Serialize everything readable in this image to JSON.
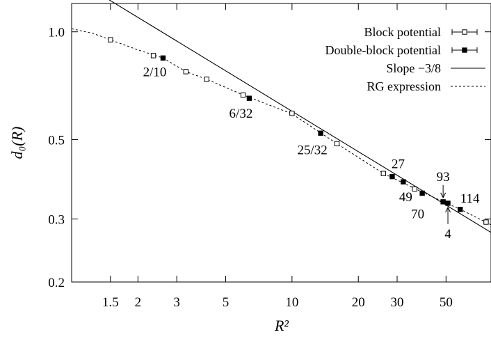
{
  "chart_data": {
    "type": "scatter",
    "xscale": "log",
    "yscale": "log",
    "xlim": [
      1.0,
      80
    ],
    "ylim": [
      0.2,
      1.2
    ],
    "xlabel": "R²",
    "ylabel": "d₀(R)",
    "xticks": [
      {
        "value": 1.5,
        "label": "1.5"
      },
      {
        "value": 2,
        "label": "2"
      },
      {
        "value": 3,
        "label": "3"
      },
      {
        "value": 5,
        "label": "5"
      },
      {
        "value": 10,
        "label": "10"
      },
      {
        "value": 20,
        "label": "20"
      },
      {
        "value": 30,
        "label": "30"
      },
      {
        "value": 50,
        "label": "50"
      }
    ],
    "yticks": [
      {
        "value": 0.2,
        "label": "0.2"
      },
      {
        "value": 0.3,
        "label": "0.3"
      },
      {
        "value": 0.5,
        "label": "0.5"
      },
      {
        "value": 1.0,
        "label": "1.0"
      }
    ],
    "legend_position": "top-right",
    "series": [
      {
        "name": "Block potential",
        "marker": "open-square",
        "points": [
          [
            1.5,
            0.95
          ],
          [
            2.35,
            0.858
          ],
          [
            3.3,
            0.774
          ],
          [
            4.1,
            0.737
          ],
          [
            6.0,
            0.666
          ],
          [
            10.0,
            0.592
          ],
          [
            16.0,
            0.487
          ],
          [
            26.0,
            0.402
          ],
          [
            36.0,
            0.364
          ],
          [
            76.0,
            0.294
          ]
        ]
      },
      {
        "name": "Double-block potential",
        "marker": "filled-square",
        "points": [
          [
            2.6,
            0.845
          ],
          [
            6.4,
            0.652
          ],
          [
            13.5,
            0.521
          ],
          [
            28.5,
            0.394
          ],
          [
            32.0,
            0.381
          ],
          [
            39.0,
            0.354
          ],
          [
            48.5,
            0.335
          ],
          [
            51.0,
            0.332
          ],
          [
            58.0,
            0.319
          ]
        ]
      },
      {
        "name": "Slope −3/8",
        "line": "solid",
        "slope": -0.375,
        "anchor": [
          10.0,
          0.6
        ]
      },
      {
        "name": "RG expression",
        "line": "dashed",
        "points": [
          [
            1.0,
            1.02
          ],
          [
            1.25,
            0.99
          ],
          [
            1.5,
            0.95
          ],
          [
            2.0,
            0.89
          ],
          [
            2.6,
            0.845
          ],
          [
            3.3,
            0.774
          ],
          [
            4.1,
            0.737
          ],
          [
            6.0,
            0.666
          ],
          [
            10.0,
            0.59
          ],
          [
            16.0,
            0.487
          ],
          [
            26.0,
            0.402
          ],
          [
            40.0,
            0.354
          ],
          [
            60.0,
            0.316
          ],
          [
            80.0,
            0.289
          ]
        ]
      }
    ],
    "annotations": [
      {
        "text": "2/10",
        "x": 2.6,
        "y": 0.845
      },
      {
        "text": "6/32",
        "x": 6.4,
        "y": 0.652
      },
      {
        "text": "25/32",
        "x": 13.5,
        "y": 0.521
      },
      {
        "text": "27",
        "x": 28.5,
        "y": 0.394
      },
      {
        "text": "49",
        "x": 32.0,
        "y": 0.381
      },
      {
        "text": "70",
        "x": 39.0,
        "y": 0.354
      },
      {
        "text": "93",
        "x": 48.5,
        "y": 0.335,
        "arrow": "down"
      },
      {
        "text": "4",
        "x": 51.0,
        "y": 0.332,
        "arrow": "up"
      },
      {
        "text": "114",
        "x": 58.0,
        "y": 0.319
      }
    ]
  }
}
